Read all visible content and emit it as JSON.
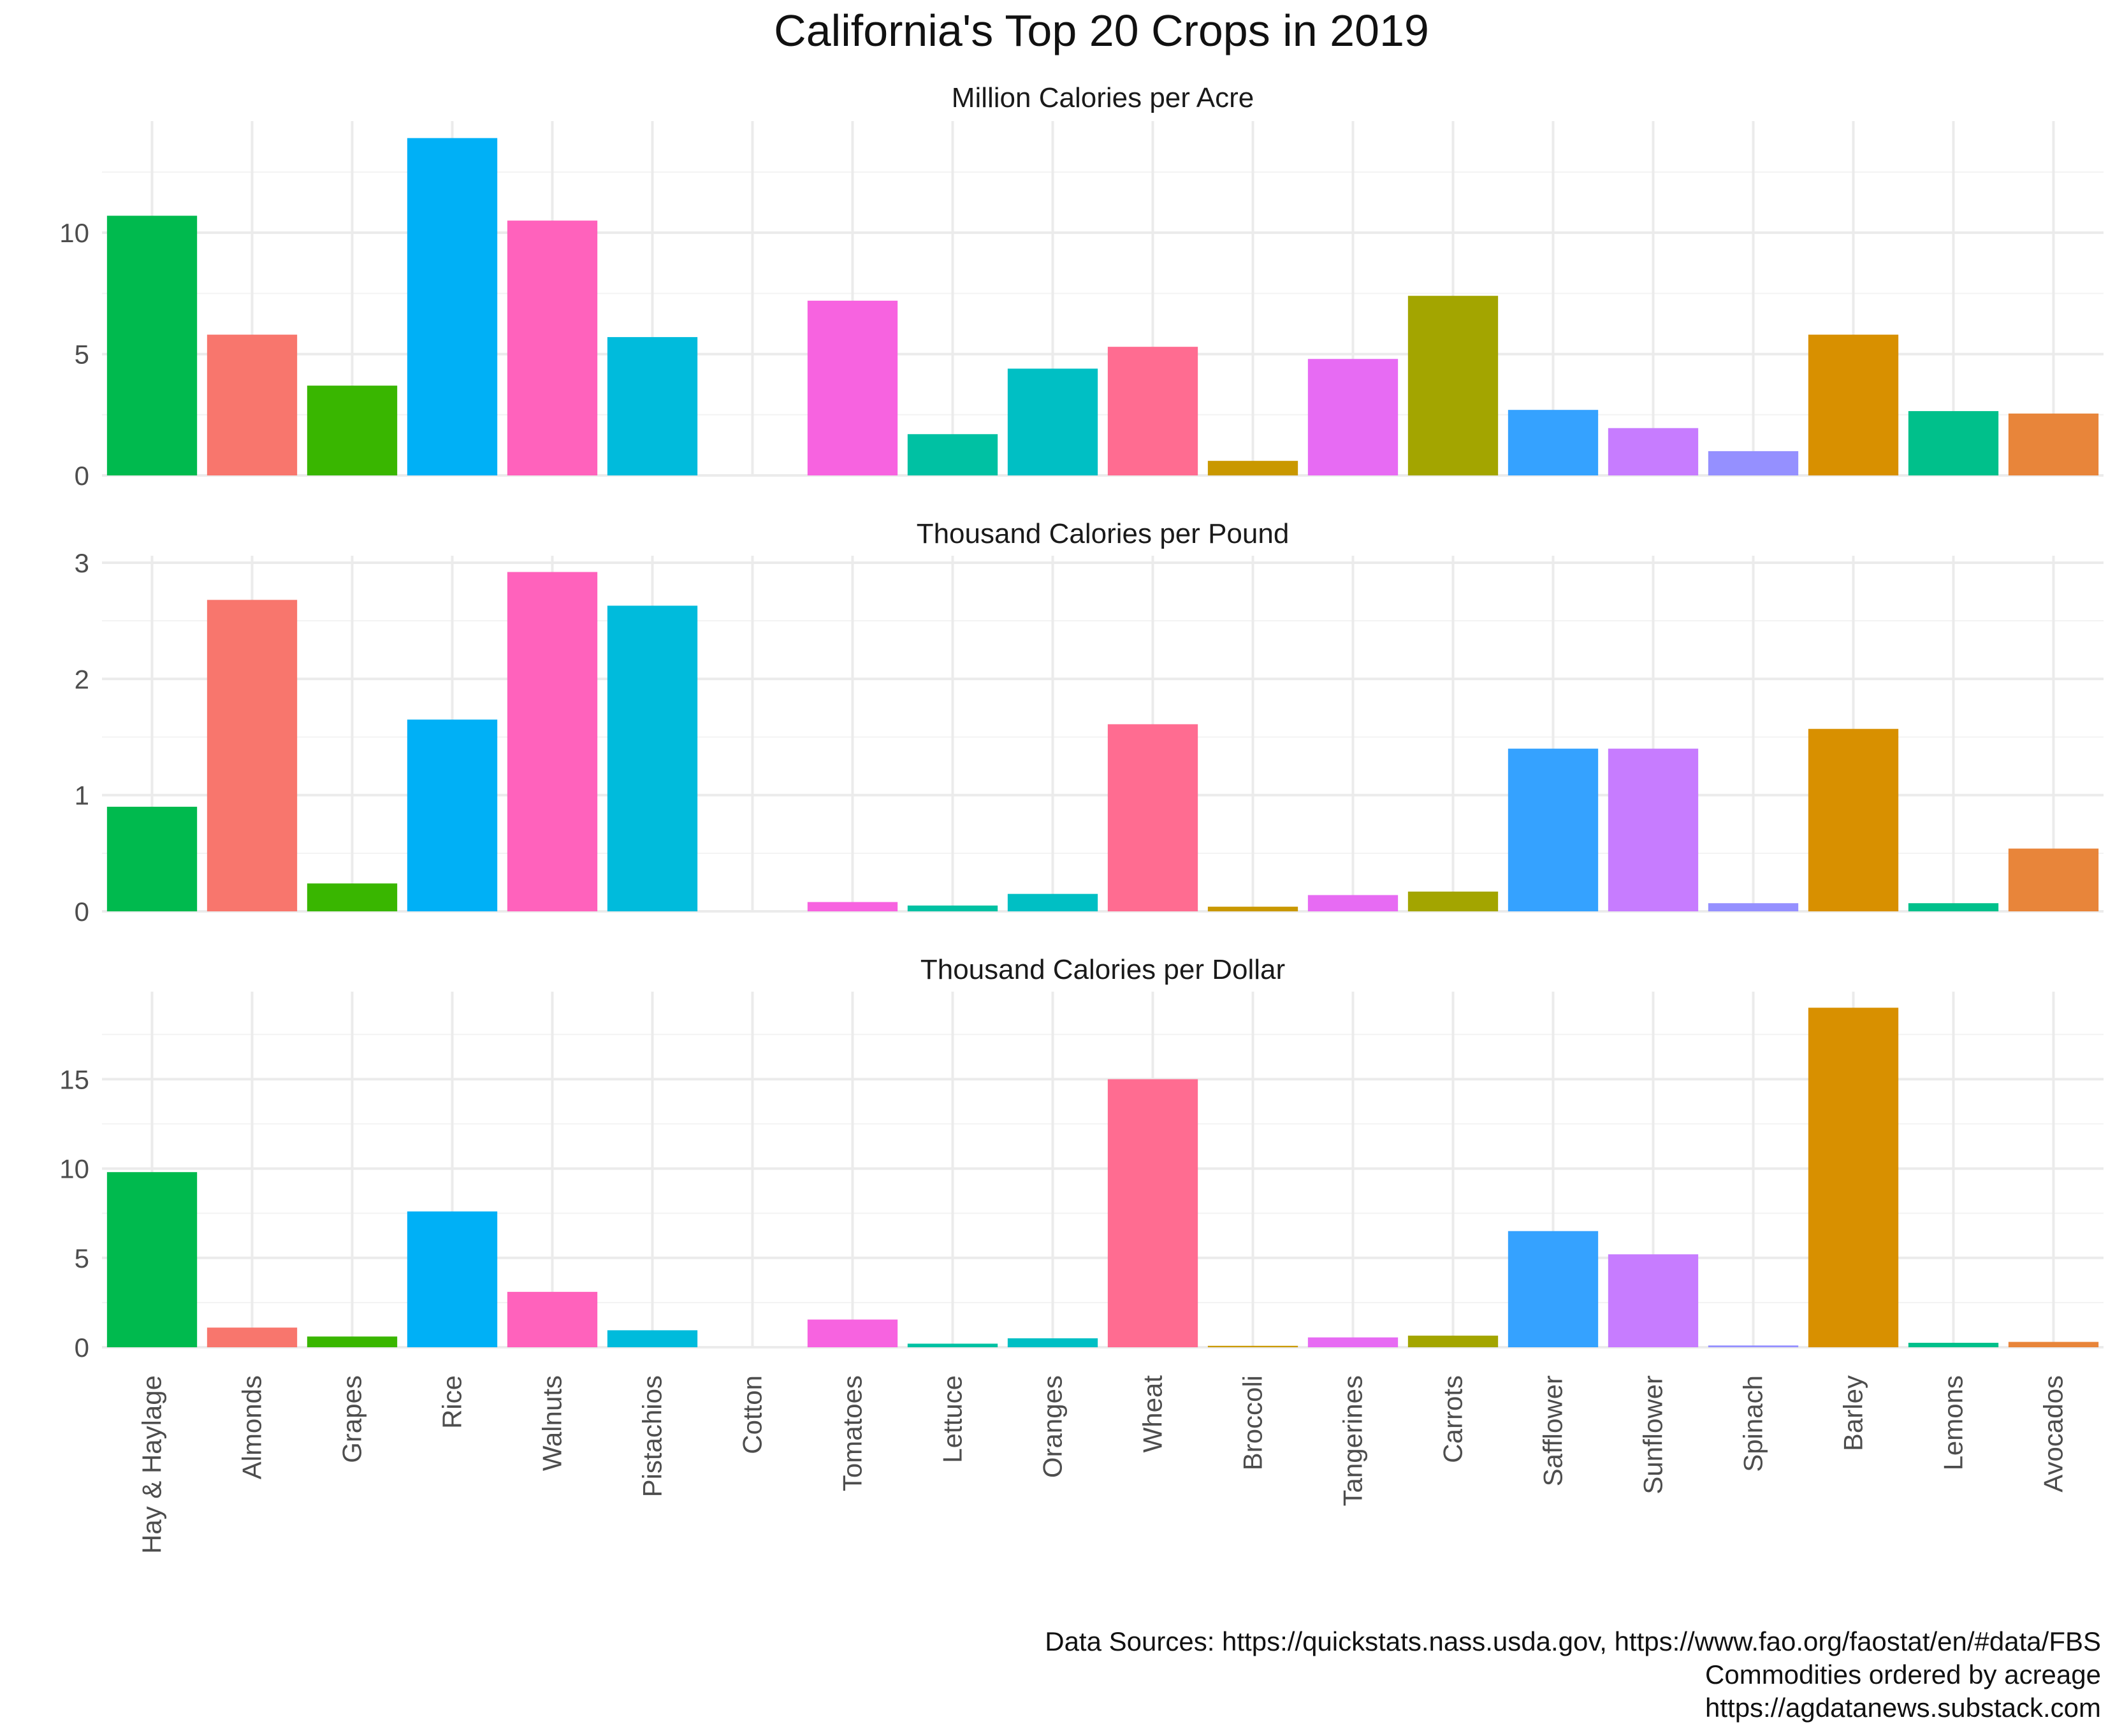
{
  "chart_data": {
    "type": "bar",
    "title": "California's Top 20 Crops in 2019",
    "categories": [
      "Hay & Haylage",
      "Almonds",
      "Grapes",
      "Rice",
      "Walnuts",
      "Pistachios",
      "Cotton",
      "Tomatoes",
      "Lettuce",
      "Oranges",
      "Wheat",
      "Broccoli",
      "Tangerines",
      "Carrots",
      "Safflower",
      "Sunflower",
      "Spinach",
      "Barley",
      "Lemons",
      "Avocados"
    ],
    "colors": [
      "#00BA4E",
      "#F8766D",
      "#39B600",
      "#00B0F6",
      "#FF62BC",
      "#00BBDC",
      "#D89000",
      "#F763E0",
      "#00C1A3",
      "#00BFC4",
      "#FF6C91",
      "#C99800",
      "#E76BF3",
      "#A3A500",
      "#35A2FF",
      "#C77CFF",
      "#9590FF",
      "#D89000",
      "#00C08B",
      "#E8853A"
    ],
    "panels": [
      {
        "strip_label": "Million Calories per Acre",
        "ylim": [
          0,
          14.6
        ],
        "yticks": [
          0,
          5,
          10
        ],
        "values": [
          10.7,
          5.8,
          3.7,
          13.9,
          10.5,
          5.7,
          0,
          7.2,
          1.7,
          4.4,
          5.3,
          0.6,
          4.8,
          7.4,
          2.7,
          1.95,
          1.0,
          5.8,
          2.65,
          2.55
        ]
      },
      {
        "strip_label": "Thousand Calories per Pound",
        "ylim": [
          0,
          3.06
        ],
        "yticks": [
          0,
          1,
          2,
          3
        ],
        "values": [
          0.9,
          2.68,
          0.24,
          1.65,
          2.92,
          2.63,
          0,
          0.08,
          0.05,
          0.15,
          1.61,
          0.04,
          0.14,
          0.17,
          1.4,
          1.4,
          0.07,
          1.57,
          0.07,
          0.54
        ]
      },
      {
        "strip_label": "Thousand Calories per Dollar",
        "ylim": [
          0,
          19.9
        ],
        "yticks": [
          0,
          5,
          10,
          15
        ],
        "values": [
          9.8,
          1.1,
          0.6,
          7.6,
          3.1,
          0.95,
          0,
          1.55,
          0.2,
          0.5,
          15.0,
          0.08,
          0.55,
          0.65,
          6.5,
          5.2,
          0.1,
          19.0,
          0.25,
          0.3
        ]
      }
    ],
    "caption": [
      "Data Sources: https://quickstats.nass.usda.gov, https://www.fao.org/faostat/en/#data/FBS",
      "Commodities ordered by acreage",
      "https://agdatanews.substack.com"
    ]
  }
}
